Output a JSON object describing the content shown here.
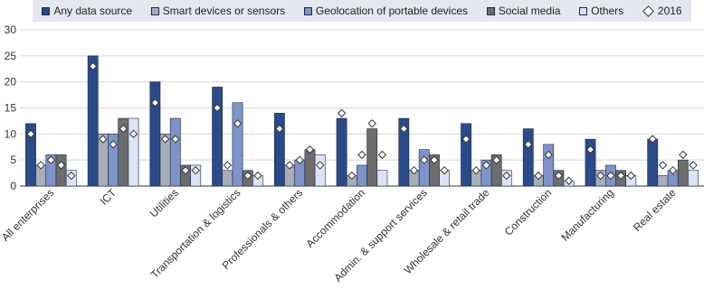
{
  "chart_data": {
    "type": "bar",
    "title": "",
    "xlabel": "",
    "ylabel": "",
    "ylim": [
      0,
      30
    ],
    "yticks": [
      0,
      5,
      10,
      15,
      20,
      25,
      30
    ],
    "grid": "horizontal",
    "legend_position": "top",
    "categories": [
      "All enterprises",
      "ICT",
      "Utilities",
      "Transportation & logistics",
      "Professionals & others",
      "Accommodation",
      "Admin. & support services",
      "Wholesale & retail trade",
      "Construction",
      "Manufacturing",
      "Real estate"
    ],
    "series": [
      {
        "name": "Any data source",
        "color": "#2b4a8a",
        "values": [
          12,
          25,
          20,
          19,
          14,
          13,
          13,
          12,
          11,
          9,
          9
        ]
      },
      {
        "name": "Smart devices or sensors",
        "color": "#a8aeb8",
        "values": [
          4,
          10,
          10,
          3,
          4,
          2,
          3,
          3,
          2,
          3,
          2
        ]
      },
      {
        "name": "Geolocation of portable devices",
        "color": "#7f93c9",
        "values": [
          6,
          10,
          13,
          16,
          5,
          4,
          7,
          5,
          8,
          4,
          3
        ]
      },
      {
        "name": "Social media",
        "color": "#6d6d6d",
        "values": [
          6,
          13,
          4,
          3,
          7,
          11,
          6,
          6,
          3,
          3,
          5
        ]
      },
      {
        "name": "Others",
        "color": "#dbe3f4",
        "values": [
          3,
          13,
          4,
          2,
          6,
          3,
          3,
          3,
          1,
          2,
          3
        ]
      }
    ],
    "markers": {
      "name": "2016",
      "values": [
        [
          10,
          4,
          5,
          4,
          2
        ],
        [
          23,
          9,
          8,
          11,
          10
        ],
        [
          16,
          9,
          9,
          3,
          3
        ],
        [
          15,
          4,
          12,
          2,
          2
        ],
        [
          11,
          4,
          5,
          7,
          4
        ],
        [
          14,
          2,
          6,
          12,
          6
        ],
        [
          11,
          3,
          5,
          5,
          3
        ],
        [
          9,
          3,
          4,
          5,
          2
        ],
        [
          8,
          2,
          6,
          2,
          1
        ],
        [
          7,
          2,
          2,
          2,
          2
        ],
        [
          9,
          4,
          3,
          6,
          4
        ]
      ]
    }
  }
}
